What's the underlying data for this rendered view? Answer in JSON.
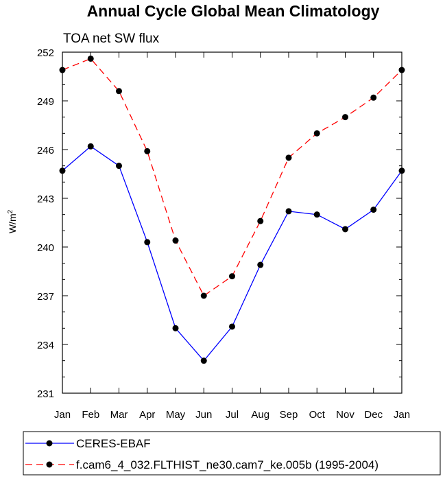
{
  "chart_data": {
    "type": "line",
    "title": "Annual Cycle Global Mean Climatology",
    "subtitle": "TOA net SW flux",
    "ylabel": "W/m",
    "ylabel_sup": "2",
    "xlabel": "",
    "categories": [
      "Jan",
      "Feb",
      "Mar",
      "Apr",
      "May",
      "Jun",
      "Jul",
      "Aug",
      "Sep",
      "Oct",
      "Nov",
      "Dec",
      "Jan"
    ],
    "ylim": [
      231,
      252
    ],
    "yticks": [
      231,
      234,
      237,
      240,
      243,
      246,
      249,
      252
    ],
    "series": [
      {
        "name": "CERES-EBAF",
        "color": "#0000ff",
        "dash": "solid",
        "values": [
          244.7,
          246.2,
          245.0,
          240.3,
          235.0,
          233.0,
          235.1,
          238.9,
          242.2,
          242.0,
          241.1,
          242.3,
          244.7
        ]
      },
      {
        "name": "f.cam6_4_032.FLTHIST_ne30.cam7_ke.005b (1995-2004)",
        "color": "#ff0000",
        "dash": "dashed",
        "values": [
          250.9,
          251.6,
          249.6,
          245.9,
          240.4,
          237.0,
          238.2,
          241.6,
          245.5,
          247.0,
          248.0,
          249.2,
          250.9
        ]
      }
    ]
  }
}
